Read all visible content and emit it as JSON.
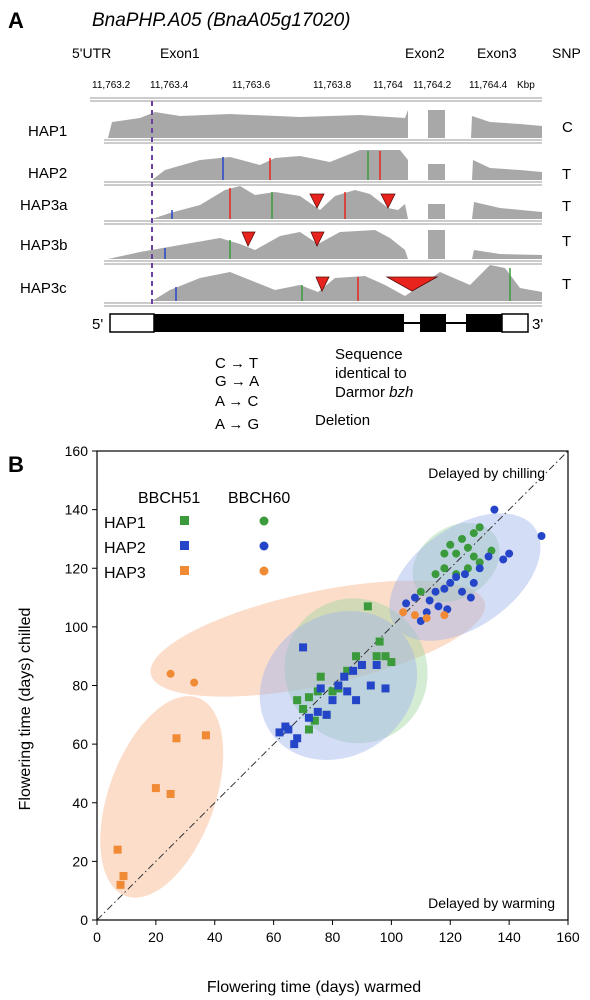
{
  "panel_a": {
    "letter": "A",
    "gene_title": "BnaPHP.A05 (BnaA05g17020)",
    "region_labels": {
      "utr5": "5'UTR",
      "exon1": "Exon1",
      "exon2": "Exon2",
      "exon3": "Exon3",
      "snp": "SNP"
    },
    "coord_ticks": [
      "11,763.2",
      "11,763.4",
      "11,763.6",
      "11,763.8",
      "11,764",
      "11,764.2",
      "11,764.4"
    ],
    "coord_unit": "Kbp",
    "tracks": [
      {
        "name": "HAP1",
        "snp": "C"
      },
      {
        "name": "HAP2",
        "snp": "T"
      },
      {
        "name": "HAP3a",
        "snp": "T"
      },
      {
        "name": "HAP3b",
        "snp": "T"
      },
      {
        "name": "HAP3c",
        "snp": "T"
      }
    ],
    "gene_model_left": "5'",
    "gene_model_right": "3'",
    "legend_substitutions": [
      "C → T",
      "G → A",
      "A → C",
      "A → G"
    ],
    "legend_identical": [
      "Sequence",
      "identical to",
      "Darmor "
    ],
    "legend_identical_italic": "bzh",
    "legend_deletion": "Deletion",
    "colors": {
      "coverage": "#a8a8a8",
      "marker": "#e8231e",
      "dashed_line": "#6a3fa0"
    }
  },
  "panel_b": {
    "letter": "B",
    "legend_header_squares": "BBCH51",
    "legend_header_circles": "BBCH60",
    "annotation_top": "Delayed by chilling",
    "annotation_bottom": "Delayed by warming",
    "colors": {
      "HAP1": "#3b9a3b",
      "HAP2": "#2545c8",
      "HAP3": "#f08a34"
    }
  },
  "chart_data": {
    "type": "scatter",
    "xlabel": "Flowering time (days) warmed",
    "ylabel": "Flowering time (days) chilled",
    "xlim": [
      0,
      160
    ],
    "ylim": [
      0,
      160
    ],
    "xticks": [
      0,
      20,
      40,
      60,
      80,
      100,
      120,
      140,
      160
    ],
    "yticks": [
      0,
      20,
      40,
      60,
      80,
      100,
      120,
      140,
      160
    ],
    "reference_line": "y = x (dash-dot)",
    "legend_position": "top-left",
    "series": [
      {
        "name": "HAP1",
        "marker": "square",
        "stage": "BBCH51",
        "points": [
          [
            70,
            72
          ],
          [
            72,
            76
          ],
          [
            75,
            78
          ],
          [
            76,
            83
          ],
          [
            78,
            70
          ],
          [
            80,
            78
          ],
          [
            85,
            85
          ],
          [
            88,
            90
          ],
          [
            92,
            107
          ],
          [
            95,
            90
          ],
          [
            96,
            95
          ],
          [
            98,
            90
          ],
          [
            100,
            88
          ],
          [
            72,
            65
          ],
          [
            68,
            75
          ],
          [
            82,
            79
          ],
          [
            90,
            87
          ],
          [
            74,
            68
          ]
        ]
      },
      {
        "name": "HAP1",
        "marker": "circle",
        "stage": "BBCH60",
        "points": [
          [
            110,
            112
          ],
          [
            115,
            118
          ],
          [
            118,
            120
          ],
          [
            120,
            128
          ],
          [
            122,
            125
          ],
          [
            124,
            130
          ],
          [
            126,
            127
          ],
          [
            128,
            132
          ],
          [
            130,
            134
          ],
          [
            118,
            125
          ],
          [
            122,
            118
          ],
          [
            126,
            120
          ],
          [
            130,
            122
          ],
          [
            134,
            126
          ],
          [
            128,
            124
          ]
        ]
      },
      {
        "name": "HAP2",
        "marker": "square",
        "stage": "BBCH51",
        "points": [
          [
            62,
            64
          ],
          [
            65,
            65
          ],
          [
            67,
            60
          ],
          [
            70,
            93
          ],
          [
            72,
            69
          ],
          [
            75,
            71
          ],
          [
            78,
            70
          ],
          [
            80,
            75
          ],
          [
            82,
            80
          ],
          [
            85,
            78
          ],
          [
            87,
            85
          ],
          [
            90,
            87
          ],
          [
            93,
            80
          ],
          [
            95,
            87
          ],
          [
            98,
            79
          ],
          [
            88,
            75
          ],
          [
            76,
            79
          ],
          [
            68,
            62
          ],
          [
            64,
            66
          ],
          [
            84,
            83
          ]
        ]
      },
      {
        "name": "HAP2",
        "marker": "circle",
        "stage": "BBCH60",
        "points": [
          [
            105,
            108
          ],
          [
            108,
            110
          ],
          [
            110,
            102
          ],
          [
            112,
            105
          ],
          [
            115,
            112
          ],
          [
            118,
            113
          ],
          [
            120,
            115
          ],
          [
            122,
            117
          ],
          [
            125,
            118
          ],
          [
            128,
            115
          ],
          [
            130,
            120
          ],
          [
            133,
            124
          ],
          [
            135,
            140
          ],
          [
            138,
            123
          ],
          [
            140,
            125
          ],
          [
            151,
            131
          ],
          [
            116,
            107
          ],
          [
            124,
            112
          ],
          [
            127,
            110
          ],
          [
            119,
            106
          ],
          [
            113,
            109
          ]
        ]
      },
      {
        "name": "HAP3",
        "marker": "square",
        "stage": "BBCH51",
        "points": [
          [
            7,
            24
          ],
          [
            8,
            12
          ],
          [
            9,
            15
          ],
          [
            20,
            45
          ],
          [
            25,
            43
          ],
          [
            27,
            62
          ],
          [
            37,
            63
          ]
        ]
      },
      {
        "name": "HAP3",
        "marker": "circle",
        "stage": "BBCH60",
        "points": [
          [
            25,
            84
          ],
          [
            33,
            81
          ],
          [
            104,
            105
          ],
          [
            108,
            104
          ],
          [
            112,
            103
          ],
          [
            118,
            104
          ]
        ]
      }
    ],
    "groups": [
      {
        "series": "HAP3",
        "color": "#f6b48a",
        "cx": 22,
        "cy": 42,
        "rx": 18,
        "ry": 36
      },
      {
        "series": "HAP3",
        "color": "#f6b48a",
        "cx": 75,
        "cy": 96,
        "rx": 58,
        "ry": 16
      },
      {
        "series": "HAP1",
        "color": "#9fd49f",
        "cx": 88,
        "cy": 85,
        "rx": 24,
        "ry": 25
      },
      {
        "series": "HAP2",
        "color": "#9fb4ea",
        "cx": 82,
        "cy": 80,
        "rx": 28,
        "ry": 24
      },
      {
        "series": "HAP1",
        "color": "#9fd49f",
        "cx": 122,
        "cy": 122,
        "rx": 16,
        "ry": 12
      },
      {
        "series": "HAP2",
        "color": "#9fb4ea",
        "cx": 125,
        "cy": 117,
        "rx": 29,
        "ry": 17
      }
    ]
  }
}
